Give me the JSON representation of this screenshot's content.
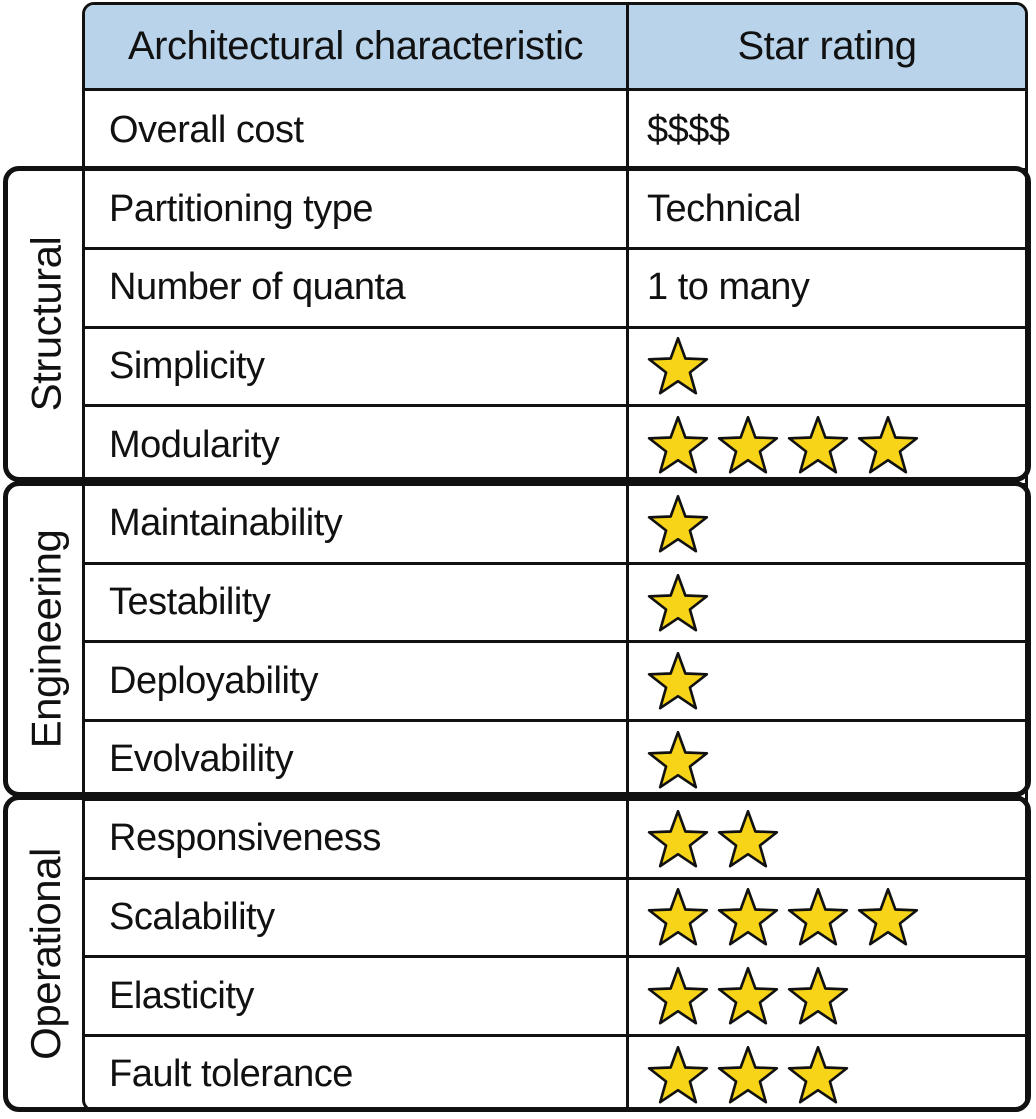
{
  "header": {
    "col1": "Architectural characteristic",
    "col2": "Star rating"
  },
  "rows": [
    {
      "label": "Overall cost",
      "value": "$$$$",
      "stars": null
    },
    {
      "label": "Partitioning type",
      "value": "Technical",
      "stars": null
    },
    {
      "label": "Number of quanta",
      "value": "1 to many",
      "stars": null
    },
    {
      "label": "Simplicity",
      "value": null,
      "stars": 1
    },
    {
      "label": "Modularity",
      "value": null,
      "stars": 4
    },
    {
      "label": "Maintainability",
      "value": null,
      "stars": 1
    },
    {
      "label": "Testability",
      "value": null,
      "stars": 1
    },
    {
      "label": "Deployability",
      "value": null,
      "stars": 1
    },
    {
      "label": "Evolvability",
      "value": null,
      "stars": 1
    },
    {
      "label": "Responsiveness",
      "value": null,
      "stars": 2
    },
    {
      "label": "Scalability",
      "value": null,
      "stars": 4
    },
    {
      "label": "Elasticity",
      "value": null,
      "stars": 3
    },
    {
      "label": "Fault tolerance",
      "value": null,
      "stars": 3
    }
  ],
  "groups": [
    {
      "label": "Structural"
    },
    {
      "label": "Engineering"
    },
    {
      "label": "Operational"
    }
  ],
  "colors": {
    "header_bg": "#b8d3ea",
    "star_fill": "#f7d417",
    "star_stroke": "#111111",
    "border": "#111111"
  },
  "icons": {
    "rating": "star-icon"
  }
}
